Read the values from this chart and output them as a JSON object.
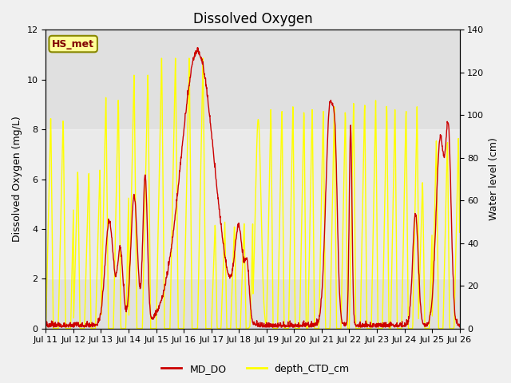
{
  "title": "Dissolved Oxygen",
  "ylabel_left": "Dissolved Oxygen (mg/L)",
  "ylabel_right": "Water level (cm)",
  "ylim_left": [
    0,
    12
  ],
  "ylim_right": [
    0,
    140
  ],
  "xtick_labels": [
    "Jul 11",
    "Jul 12",
    "Jul 13",
    "Jul 14",
    "Jul 15",
    "Jul 16",
    "Jul 17",
    "Jul 18",
    "Jul 19",
    "Jul 20",
    "Jul 21",
    "Jul 22",
    "Jul 23",
    "Jul 24",
    "Jul 25",
    "Jul 26"
  ],
  "color_red": "#cc0000",
  "color_yellow": "#ffff00",
  "line_width": 1.0,
  "annotation_text": "HS_met",
  "annotation_color": "#800000",
  "annotation_bg": "#ffff99",
  "legend_labels": [
    "MD_DO",
    "depth_CTD_cm"
  ],
  "plot_bg_color": "#e0e0e0",
  "shading_color": "#c8c8c8",
  "shading_ylim": [
    2,
    8
  ],
  "title_fontsize": 12,
  "axis_label_fontsize": 9,
  "tick_fontsize": 8,
  "fig_facecolor": "#f0f0f0"
}
